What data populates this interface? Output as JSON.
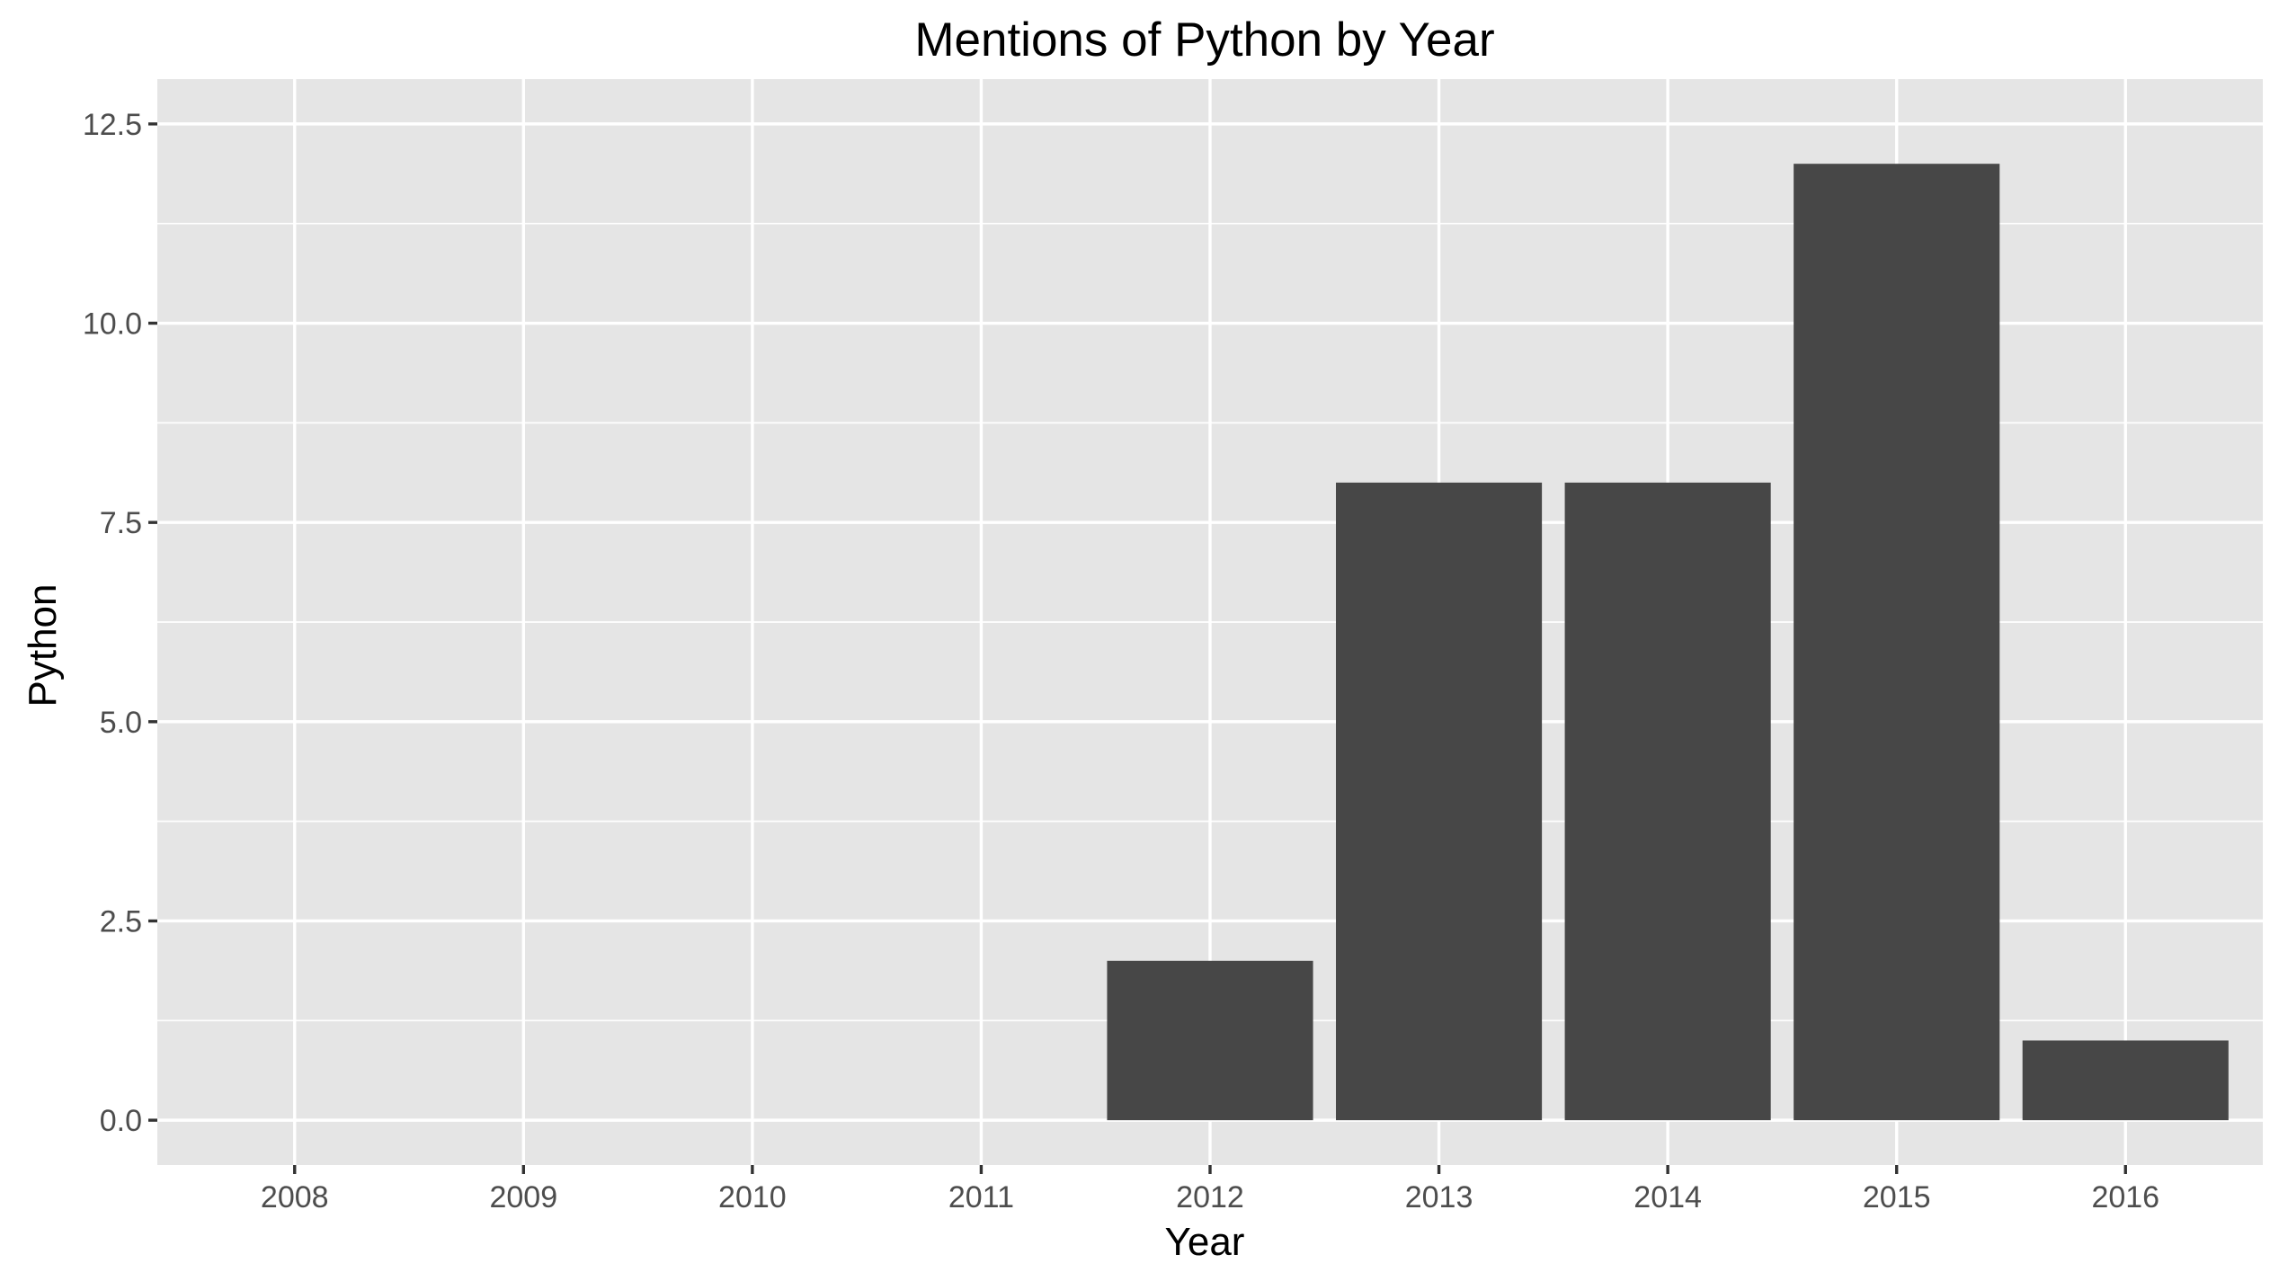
{
  "chart_data": {
    "type": "bar",
    "title": "Mentions of Python by Year",
    "xlabel": "Year",
    "ylabel": "Python",
    "categories": [
      "2008",
      "2009",
      "2010",
      "2011",
      "2012",
      "2013",
      "2014",
      "2015",
      "2016"
    ],
    "values": [
      0,
      0,
      0,
      0,
      2,
      8,
      8,
      12,
      1
    ],
    "ylim": [
      0,
      12.5
    ],
    "yticks": [
      "0.0",
      "2.5",
      "5.0",
      "7.5",
      "10.0",
      "12.5"
    ],
    "grid": true,
    "colors": {
      "bar": "#474747",
      "panel": "#e5e5e5",
      "grid": "#ffffff"
    }
  }
}
